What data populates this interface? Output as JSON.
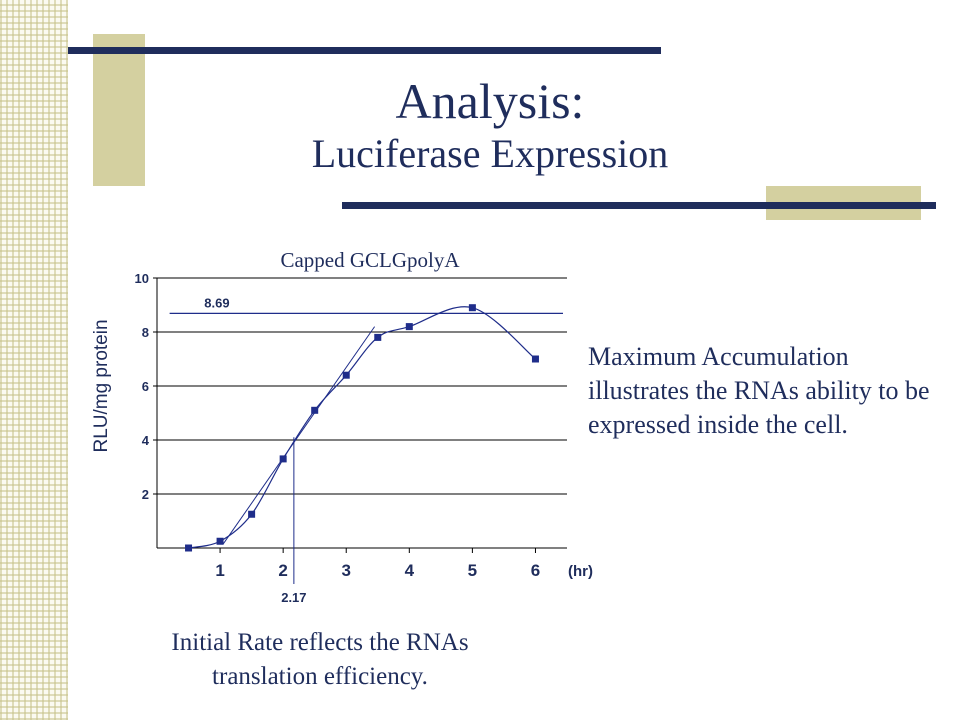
{
  "slide": {
    "title": "Analysis:",
    "subtitle": "Luciferase Expression",
    "annotation_right": "Maximum Accumulation illustrates the RNAs ability to be expressed inside the cell.",
    "annotation_bottom": "Initial Rate reflects the RNAs translation efficiency.",
    "colors": {
      "accent": "#1f2d5c",
      "deco": "#d4d0a0",
      "series": "#1f2d8a"
    }
  },
  "chart_data": {
    "type": "scatter",
    "title": "Capped GCLGpolyA",
    "ylabel": "RLU/mg protein",
    "xlabel": "(hr)",
    "xlim": [
      0,
      6.5
    ],
    "ylim": [
      0,
      10
    ],
    "x_ticks": [
      1,
      2,
      3,
      4,
      5,
      6
    ],
    "y_ticks": [
      2,
      4,
      6,
      8,
      10
    ],
    "grid": "horizontal",
    "series": [
      {
        "x": [
          0.5,
          1.0,
          1.5,
          2.0,
          2.5,
          3.0,
          3.5,
          4.0,
          5.0,
          6.0
        ],
        "y": [
          0.0,
          0.25,
          1.25,
          3.3,
          5.1,
          6.4,
          7.8,
          8.2,
          8.9,
          7.0
        ]
      }
    ],
    "annotations": {
      "max_line_value": 8.69,
      "max_label": "8.69",
      "initial_rate_x": 2.17,
      "initial_rate_label": "2.17"
    }
  }
}
